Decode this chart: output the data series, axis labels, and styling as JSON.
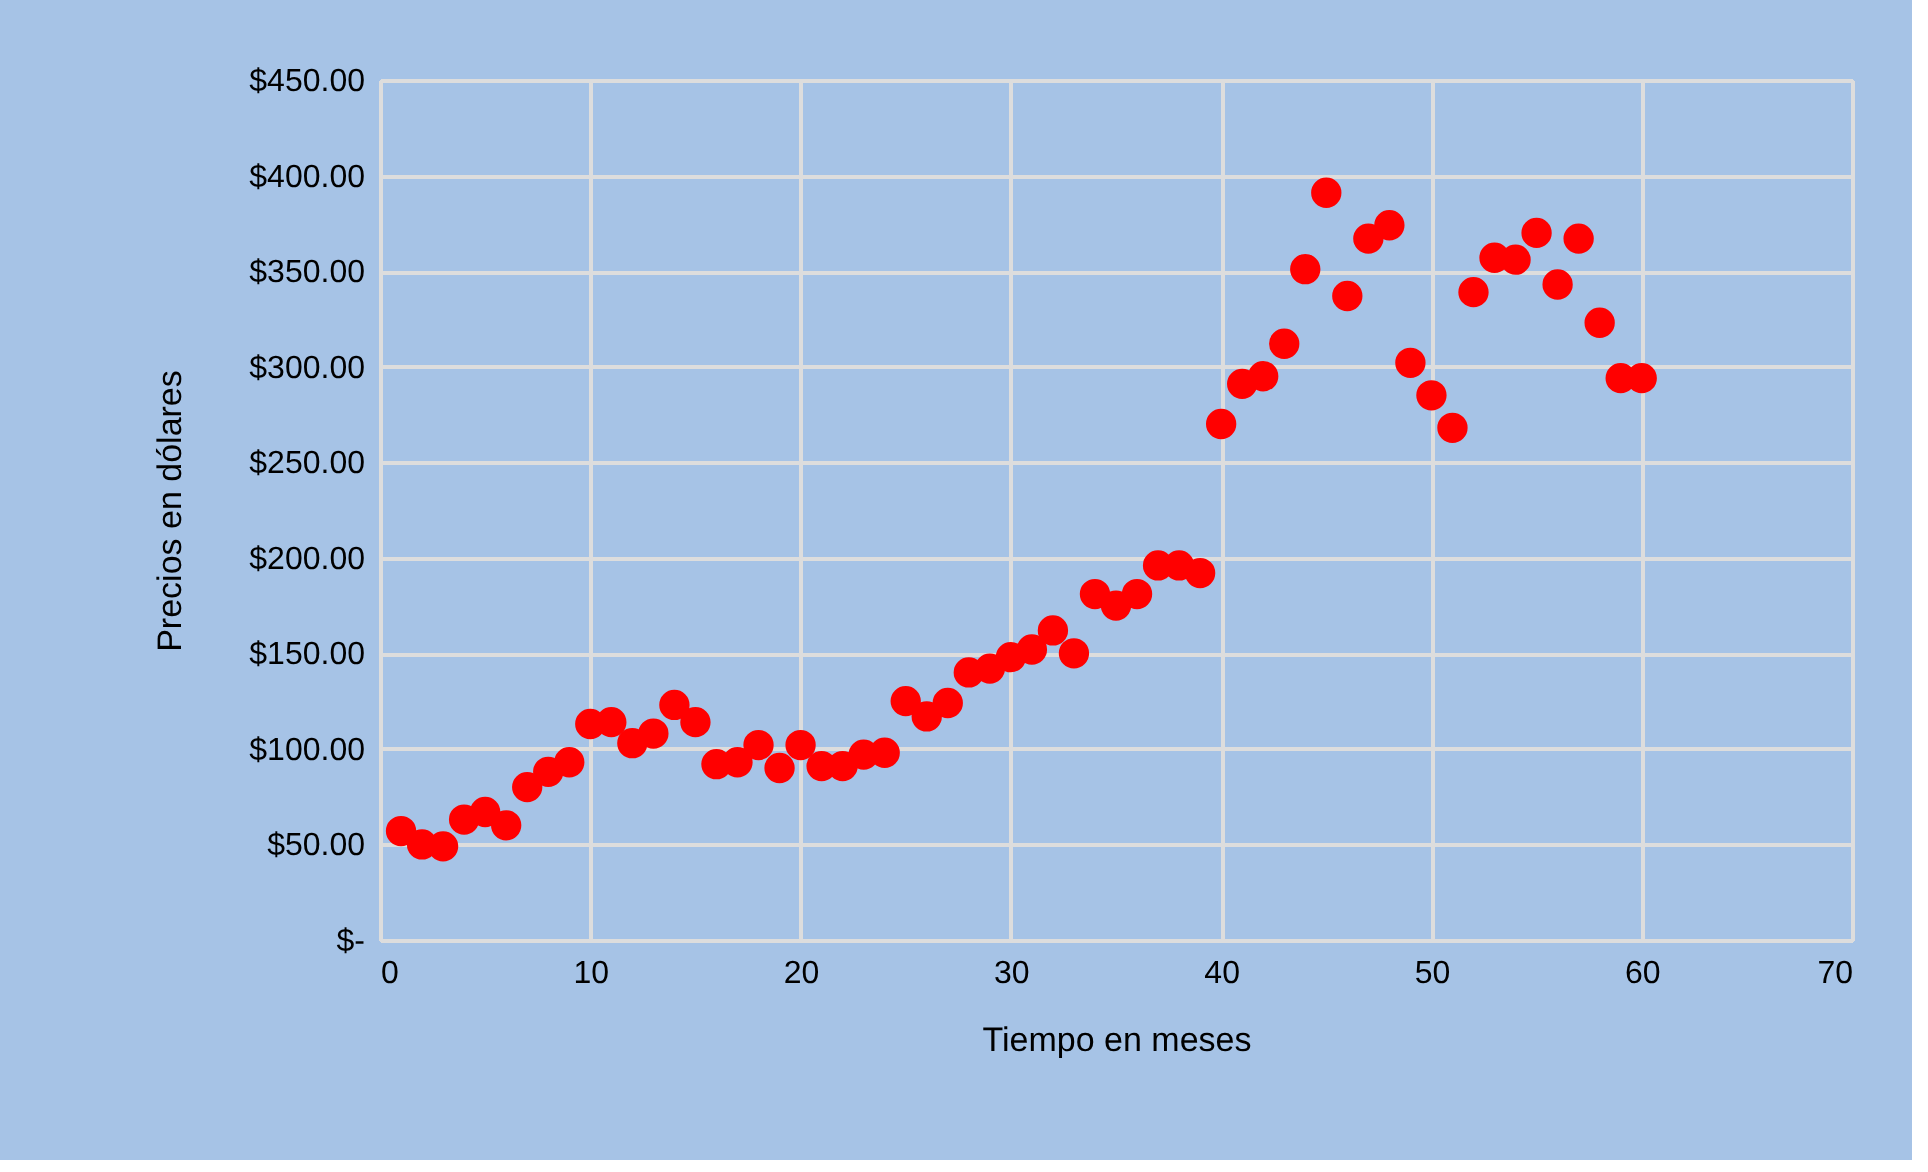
{
  "chart_data": {
    "type": "scatter",
    "xlabel": "Tiempo en meses",
    "ylabel": "Precios en dólares",
    "x": [
      1,
      2,
      3,
      4,
      5,
      6,
      7,
      8,
      9,
      10,
      11,
      12,
      13,
      14,
      15,
      16,
      17,
      18,
      19,
      20,
      21,
      22,
      23,
      24,
      25,
      26,
      27,
      28,
      29,
      30,
      31,
      32,
      33,
      34,
      35,
      36,
      37,
      38,
      39,
      40,
      41,
      42,
      43,
      44,
      45,
      46,
      47,
      48,
      49,
      50,
      51,
      52,
      53,
      54,
      55,
      56,
      57,
      58,
      59,
      60
    ],
    "series": [
      {
        "color": "#ff0000",
        "values": [
          57,
          50,
          49,
          63,
          67,
          60,
          80,
          88,
          93,
          113,
          114,
          103,
          108,
          123,
          114,
          92,
          93,
          102,
          90,
          102,
          91,
          91,
          97,
          98,
          125,
          117,
          124,
          140,
          142,
          148,
          152,
          162,
          150,
          181,
          175,
          181,
          196,
          196,
          192,
          270,
          291,
          295,
          312,
          351,
          391,
          337,
          367,
          374,
          302,
          285,
          268,
          339,
          357,
          356,
          370,
          343,
          367,
          323,
          294,
          294
        ]
      }
    ],
    "xlim": [
      0,
      70
    ],
    "xticks": [
      0,
      10,
      20,
      30,
      40,
      50,
      60,
      70
    ],
    "ylim": [
      0,
      450
    ],
    "yticks": [
      {
        "value": 0,
        "label": "$-"
      },
      {
        "value": 50,
        "label": "$50.00"
      },
      {
        "value": 100,
        "label": "$100.00"
      },
      {
        "value": 150,
        "label": "$150.00"
      },
      {
        "value": 200,
        "label": "$200.00"
      },
      {
        "value": 250,
        "label": "$250.00"
      },
      {
        "value": 300,
        "label": "$300.00"
      },
      {
        "value": 350,
        "label": "$350.00"
      },
      {
        "value": 400,
        "label": "$400.00"
      },
      {
        "value": 450,
        "label": "$450.00"
      }
    ],
    "grid": true,
    "marker": "circle"
  }
}
